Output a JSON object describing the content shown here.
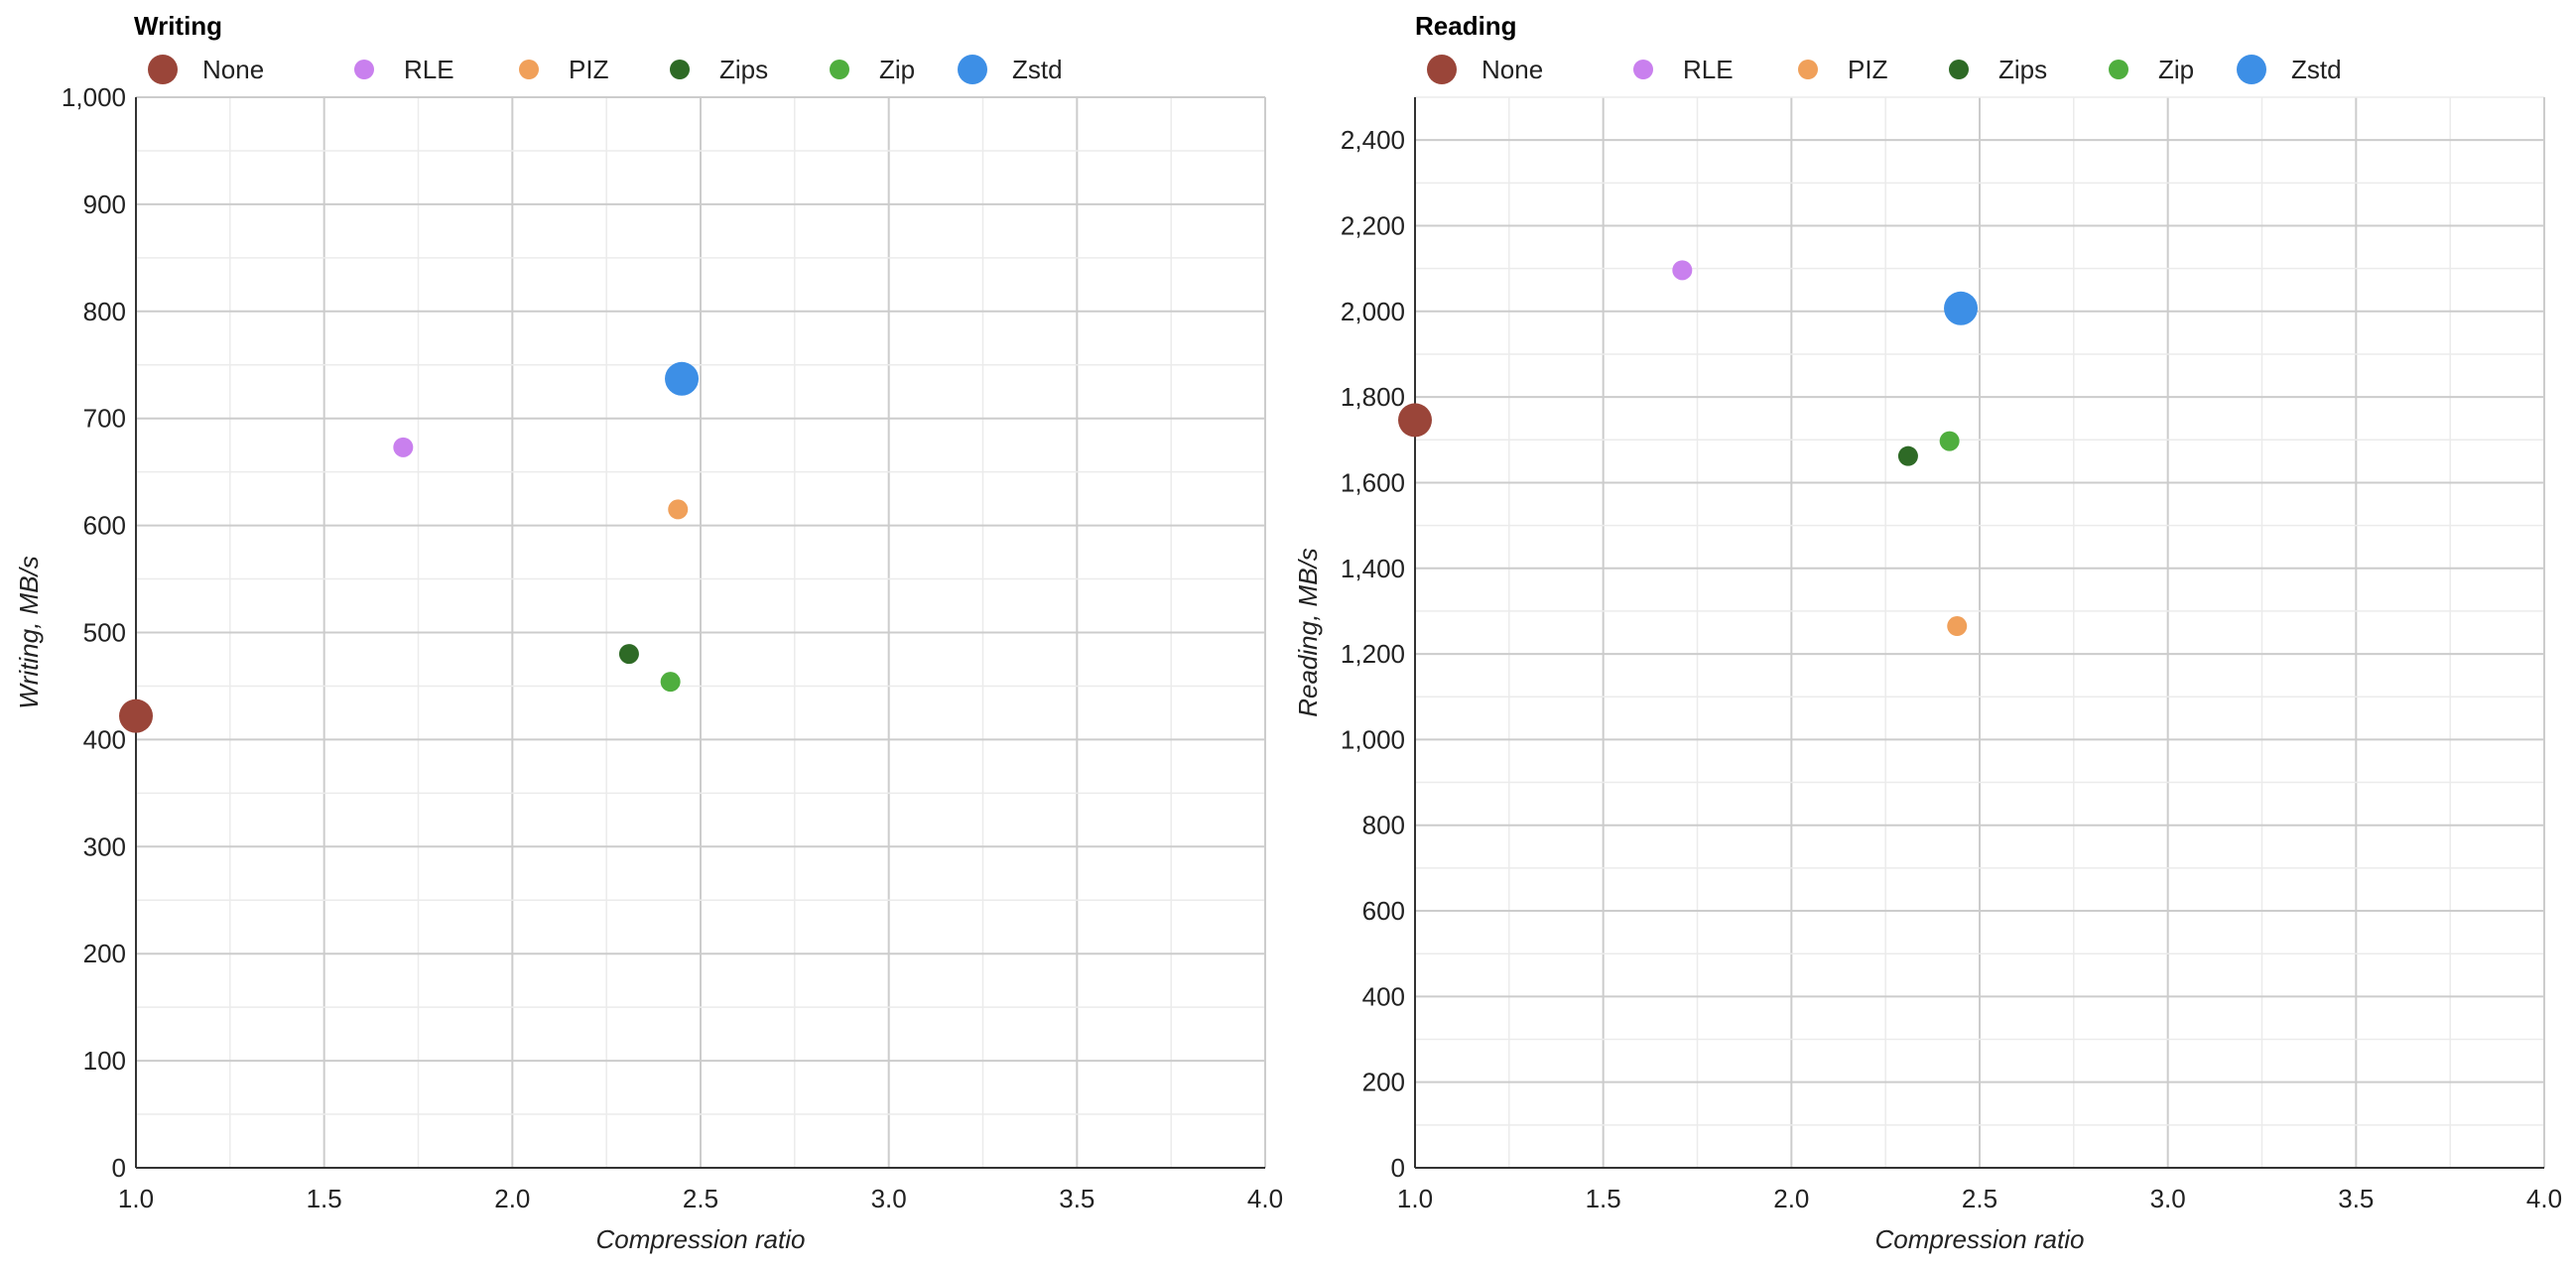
{
  "chart_data": [
    {
      "type": "scatter",
      "title": "Writing",
      "xlabel": "Compression ratio",
      "ylabel": "Writing, MB/s",
      "xlim": [
        1.0,
        4.0
      ],
      "ylim": [
        0,
        1000
      ],
      "xticks": [
        1.0,
        1.5,
        2.0,
        2.5,
        3.0,
        3.5,
        4.0
      ],
      "xtick_labels": [
        "1.0",
        "1.5",
        "2.0",
        "2.5",
        "3.0",
        "3.5",
        "4.0"
      ],
      "yticks": [
        0,
        100,
        200,
        300,
        400,
        500,
        600,
        700,
        800,
        900,
        1000
      ],
      "ytick_labels": [
        "0",
        "100",
        "200",
        "300",
        "400",
        "500",
        "600",
        "700",
        "800",
        "900",
        "1,000"
      ],
      "grid": true,
      "legend_position": "top-left",
      "series": [
        {
          "name": "None",
          "color": "#9a4539",
          "marker": "large",
          "points": [
            {
              "x": 1.0,
              "y": 422
            }
          ]
        },
        {
          "name": "RLE",
          "color": "#c980ee",
          "marker": "small",
          "points": [
            {
              "x": 1.71,
              "y": 673
            }
          ]
        },
        {
          "name": "PIZ",
          "color": "#f0a05a",
          "marker": "small",
          "points": [
            {
              "x": 2.44,
              "y": 615
            }
          ]
        },
        {
          "name": "Zips",
          "color": "#2e6a26",
          "marker": "small",
          "points": [
            {
              "x": 2.31,
              "y": 480
            }
          ]
        },
        {
          "name": "Zip",
          "color": "#4fae3e",
          "marker": "small",
          "points": [
            {
              "x": 2.42,
              "y": 454
            }
          ]
        },
        {
          "name": "Zstd",
          "color": "#3d8fe6",
          "marker": "large",
          "points": [
            {
              "x": 2.45,
              "y": 737
            }
          ]
        }
      ]
    },
    {
      "type": "scatter",
      "title": "Reading",
      "xlabel": "Compression ratio",
      "ylabel": "Reading, MB/s",
      "xlim": [
        1.0,
        4.0
      ],
      "ylim": [
        0,
        2500
      ],
      "xticks": [
        1.0,
        1.5,
        2.0,
        2.5,
        3.0,
        3.5,
        4.0
      ],
      "xtick_labels": [
        "1.0",
        "1.5",
        "2.0",
        "2.5",
        "3.0",
        "3.5",
        "4.0"
      ],
      "yticks": [
        0,
        200,
        400,
        600,
        800,
        1000,
        1200,
        1400,
        1600,
        1800,
        2000,
        2200,
        2400
      ],
      "ytick_labels": [
        "0",
        "200",
        "400",
        "600",
        "800",
        "1,000",
        "1,200",
        "1,400",
        "1,600",
        "1,800",
        "2,000",
        "2,200",
        "2,400"
      ],
      "grid": true,
      "legend_position": "top-left",
      "series": [
        {
          "name": "None",
          "color": "#9a4539",
          "marker": "large",
          "points": [
            {
              "x": 1.0,
              "y": 1746
            }
          ]
        },
        {
          "name": "RLE",
          "color": "#c980ee",
          "marker": "small",
          "points": [
            {
              "x": 1.71,
              "y": 2096
            }
          ]
        },
        {
          "name": "PIZ",
          "color": "#f0a05a",
          "marker": "small",
          "points": [
            {
              "x": 2.44,
              "y": 1265
            }
          ]
        },
        {
          "name": "Zips",
          "color": "#2e6a26",
          "marker": "small",
          "points": [
            {
              "x": 2.31,
              "y": 1662
            }
          ]
        },
        {
          "name": "Zip",
          "color": "#4fae3e",
          "marker": "small",
          "points": [
            {
              "x": 2.42,
              "y": 1697
            }
          ]
        },
        {
          "name": "Zstd",
          "color": "#3d8fe6",
          "marker": "large",
          "points": [
            {
              "x": 2.45,
              "y": 2007
            }
          ]
        }
      ]
    }
  ]
}
